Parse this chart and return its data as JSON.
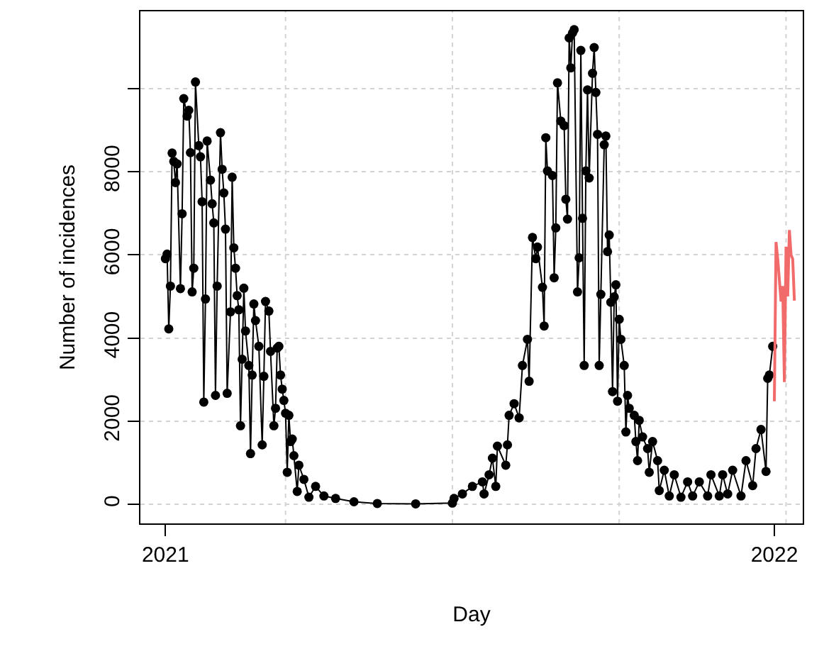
{
  "chart_data": {
    "type": "line",
    "xlabel": "Day",
    "ylabel": "Number of incidences",
    "xlim": [
      "2020-12-17",
      "2022-01-18"
    ],
    "ylim": [
      -460,
      11860
    ],
    "xticks": [
      {
        "value": "2021-01-01",
        "label": "2021"
      },
      {
        "value": "2021-03-14",
        "label": null
      },
      {
        "value": "2021-06-22",
        "label": null
      },
      {
        "value": "2021-09-30",
        "label": null
      },
      {
        "value": "2022-01-01",
        "label": "2022"
      },
      {
        "value": "2022-01-08",
        "label": null
      }
    ],
    "yticks": [
      0,
      2000,
      4000,
      6000,
      8000,
      {
        "value": 10000,
        "label": null
      }
    ],
    "grid": true,
    "series": [
      {
        "color": "#000000",
        "marker": "circle",
        "line_style": "solid",
        "x": [
          "2021-01-01",
          "2021-01-02",
          "2021-01-03",
          "2021-01-04",
          "2021-01-05",
          "2021-01-06",
          "2021-01-07",
          "2021-01-08",
          "2021-01-10",
          "2021-01-11",
          "2021-01-12",
          "2021-01-14",
          "2021-01-15",
          "2021-01-16",
          "2021-01-17",
          "2021-01-18",
          "2021-01-19",
          "2021-01-21",
          "2021-01-22",
          "2021-01-23",
          "2021-01-24",
          "2021-01-25",
          "2021-01-26",
          "2021-01-28",
          "2021-01-29",
          "2021-01-30",
          "2021-01-31",
          "2021-02-01",
          "2021-02-03",
          "2021-02-04",
          "2021-02-05",
          "2021-02-06",
          "2021-02-07",
          "2021-02-09",
          "2021-02-10",
          "2021-02-11",
          "2021-02-12",
          "2021-02-13",
          "2021-02-14",
          "2021-02-15",
          "2021-02-16",
          "2021-02-17",
          "2021-02-18",
          "2021-02-20",
          "2021-02-21",
          "2021-02-22",
          "2021-02-23",
          "2021-02-24",
          "2021-02-26",
          "2021-02-28",
          "2021-03-01",
          "2021-03-02",
          "2021-03-04",
          "2021-03-05",
          "2021-03-07",
          "2021-03-08",
          "2021-03-09",
          "2021-03-10",
          "2021-03-11",
          "2021-03-12",
          "2021-03-13",
          "2021-03-14",
          "2021-03-15",
          "2021-03-16",
          "2021-03-17",
          "2021-03-18",
          "2021-03-19",
          "2021-03-21",
          "2021-03-22",
          "2021-03-25",
          "2021-03-28",
          "2021-04-01",
          "2021-04-06",
          "2021-04-13",
          "2021-04-24",
          "2021-05-08",
          "2021-05-31",
          "2021-06-22",
          "2021-06-23",
          "2021-06-28",
          "2021-07-04",
          "2021-07-10",
          "2021-07-11",
          "2021-07-14",
          "2021-07-16",
          "2021-07-18",
          "2021-07-19",
          "2021-07-24",
          "2021-07-25",
          "2021-07-26",
          "2021-07-29",
          "2021-08-01",
          "2021-08-03",
          "2021-08-06",
          "2021-08-07",
          "2021-08-09",
          "2021-08-11",
          "2021-08-12",
          "2021-08-15",
          "2021-08-16",
          "2021-08-17",
          "2021-08-18",
          "2021-08-21",
          "2021-08-22",
          "2021-08-23",
          "2021-08-24",
          "2021-08-26",
          "2021-08-28",
          "2021-08-29",
          "2021-08-30",
          "2021-08-31",
          "2021-09-01",
          "2021-09-02",
          "2021-09-03",
          "2021-09-05",
          "2021-09-06",
          "2021-09-07",
          "2021-09-08",
          "2021-09-09",
          "2021-09-10",
          "2021-09-11",
          "2021-09-12",
          "2021-09-14",
          "2021-09-15",
          "2021-09-16",
          "2021-09-17",
          "2021-09-18",
          "2021-09-19",
          "2021-09-21",
          "2021-09-22",
          "2021-09-23",
          "2021-09-24",
          "2021-09-25",
          "2021-09-26",
          "2021-09-27",
          "2021-09-28",
          "2021-09-29",
          "2021-09-30",
          "2021-10-01",
          "2021-10-03",
          "2021-10-04",
          "2021-10-05",
          "2021-10-06",
          "2021-10-09",
          "2021-10-10",
          "2021-10-11",
          "2021-10-12",
          "2021-10-14",
          "2021-10-17",
          "2021-10-18",
          "2021-10-20",
          "2021-10-23",
          "2021-10-24",
          "2021-10-27",
          "2021-10-30",
          "2021-11-02",
          "2021-11-06",
          "2021-11-10",
          "2021-11-13",
          "2021-11-17",
          "2021-11-22",
          "2021-11-24",
          "2021-11-29",
          "2021-12-01",
          "2021-12-04",
          "2021-12-07",
          "2021-12-12",
          "2021-12-15",
          "2021-12-19",
          "2021-12-21",
          "2021-12-24",
          "2021-12-27",
          "2021-12-28",
          "2021-12-29",
          "2021-12-31"
        ],
        "values": [
          5910,
          6020,
          4220,
          5250,
          8450,
          8250,
          7740,
          8190,
          5190,
          6990,
          9760,
          9340,
          9480,
          8460,
          5110,
          5680,
          10160,
          8630,
          8360,
          7280,
          2460,
          4940,
          8740,
          7800,
          7230,
          6770,
          2620,
          5250,
          8940,
          8060,
          7490,
          6620,
          2670,
          4630,
          7870,
          6170,
          5680,
          5020,
          4680,
          1890,
          3490,
          5200,
          4170,
          3340,
          1220,
          3110,
          4820,
          4420,
          3800,
          1430,
          3080,
          4880,
          4650,
          3680,
          1890,
          2310,
          3760,
          3800,
          3110,
          2770,
          2500,
          2190,
          770,
          2140,
          1510,
          1570,
          1170,
          310,
          940,
          600,
          170,
          430,
          200,
          140,
          60,
          20,
          10,
          30,
          140,
          250,
          430,
          540,
          250,
          710,
          1110,
          430,
          1400,
          940,
          1430,
          2140,
          2420,
          2080,
          3340,
          3970,
          2960,
          6420,
          5910,
          6190,
          5220,
          4290,
          8820,
          8020,
          7910,
          5450,
          6650,
          10140,
          9220,
          9110,
          7340,
          6860,
          11220,
          10500,
          11340,
          11420,
          5110,
          5930,
          10920,
          6880,
          3340,
          8020,
          9970,
          7850,
          10370,
          10990,
          9910,
          8900,
          3340,
          5050,
          8650,
          8860,
          6080,
          6480,
          4860,
          2710,
          4990,
          5280,
          2480,
          4450,
          3970,
          3340,
          1740,
          2620,
          2310,
          2140,
          1510,
          1050,
          2020,
          1620,
          1340,
          770,
          1510,
          1050,
          330,
          820,
          200,
          710,
          170,
          540,
          200,
          540,
          200,
          710,
          200,
          710,
          250,
          820,
          200,
          1050,
          450,
          1340,
          1800,
          790,
          3030,
          3110,
          3800
        ]
      },
      {
        "color": "#f26b6b",
        "marker": "none",
        "line_style": "solid",
        "x": [
          "2022-01-01",
          "2022-01-02",
          "2022-01-03",
          "2022-01-05",
          "2022-01-06",
          "2022-01-07",
          "2022-01-08",
          "2022-01-09",
          "2022-01-10",
          "2022-01-11",
          "2022-01-12",
          "2022-01-13"
        ],
        "values": [
          2480,
          6310,
          5910,
          4880,
          5250,
          2940,
          6200,
          5000,
          6600,
          6000,
          5900,
          4900
        ]
      }
    ]
  }
}
